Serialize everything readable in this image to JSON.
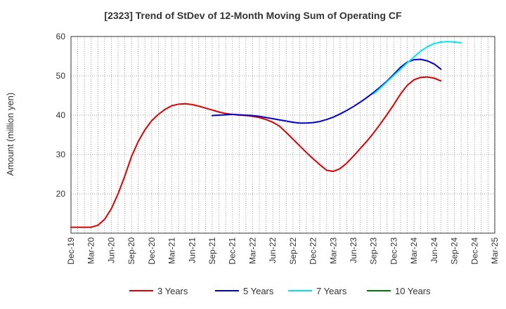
{
  "chart_data": {
    "type": "line",
    "title": "[2323]  Trend of StDev of 12-Month Moving Sum of Operating CF",
    "xlabel": "",
    "ylabel": "Amount (million yen)",
    "ylim": [
      10,
      60
    ],
    "yticks": [
      20,
      30,
      40,
      50,
      60
    ],
    "grid": true,
    "legend_position": "bottom",
    "x_start": "Dec-19",
    "x_tick_labels": [
      "Dec-19",
      "Mar-20",
      "Jun-20",
      "Sep-20",
      "Dec-20",
      "Mar-21",
      "Jun-21",
      "Sep-21",
      "Dec-21",
      "Mar-22",
      "Jun-22",
      "Sep-22",
      "Dec-22",
      "Mar-23",
      "Jun-23",
      "Sep-23",
      "Dec-23",
      "Mar-24",
      "Jun-24",
      "Sep-24",
      "Dec-24",
      "Mar-25"
    ],
    "series": [
      {
        "name": "3 Years",
        "color": "#dd0000",
        "start_index": 0,
        "values": [
          11.5,
          11.5,
          11.5,
          11.5,
          12.0,
          13.5,
          16.2,
          20.0,
          24.5,
          29.5,
          33.3,
          36.3,
          38.6,
          40.2,
          41.5,
          42.4,
          42.8,
          42.9,
          42.7,
          42.3,
          41.8,
          41.3,
          40.8,
          40.4,
          40.2,
          40.0,
          39.9,
          39.7,
          39.4,
          38.9,
          38.2,
          37.2,
          35.6,
          33.9,
          32.2,
          30.5,
          28.9,
          27.4,
          26.0,
          25.7,
          26.4,
          27.8,
          29.6,
          31.5,
          33.4,
          35.5,
          37.8,
          40.2,
          42.7,
          45.4,
          47.6,
          49.0,
          49.6,
          49.7,
          49.4,
          48.7
        ]
      },
      {
        "name": "5 Years",
        "color": "#0000cc",
        "start_index": 21,
        "values": [
          39.9,
          40.0,
          40.1,
          40.2,
          40.1,
          40.0,
          39.9,
          39.7,
          39.4,
          39.1,
          38.8,
          38.5,
          38.2,
          38.0,
          38.0,
          38.1,
          38.4,
          38.9,
          39.5,
          40.3,
          41.2,
          42.2,
          43.3,
          44.5,
          45.8,
          47.2,
          48.7,
          50.4,
          52.2,
          53.5,
          54.1,
          54.2,
          53.8,
          53.0,
          51.7
        ]
      },
      {
        "name": "7 Years",
        "color": "#00e5ee",
        "start_index": 45,
        "values": [
          45.4,
          46.9,
          48.5,
          50.1,
          51.7,
          53.3,
          54.8,
          56.3,
          57.4,
          58.2,
          58.6,
          58.7,
          58.6,
          58.4
        ]
      },
      {
        "name": "10 Years",
        "color": "#007700",
        "start_index": 0,
        "values": []
      }
    ]
  }
}
